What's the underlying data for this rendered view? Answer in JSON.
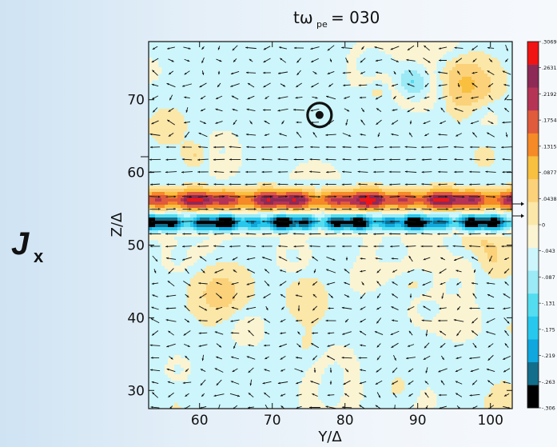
{
  "figure": {
    "quantity_label": "J",
    "quantity_subscript": "x",
    "title_main": "tω",
    "title_sub": "pe",
    "title_value": "= 030"
  },
  "chart_data": {
    "type": "heatmap",
    "plot": "filled contour of current density with overlaid vector arrows",
    "xlabel": "Y/Δ",
    "ylabel": "Z/Δ",
    "xlim": [
      53,
      103
    ],
    "ylim": [
      27.5,
      78
    ],
    "xticks": [
      60,
      70,
      80,
      90,
      100
    ],
    "yticks": [
      30,
      40,
      50,
      60,
      70
    ],
    "grid": false,
    "colorbar": {
      "placement": "right",
      "min": -0.3069,
      "max": 0.3069,
      "tick_labels": [
        ".3069",
        ".2631",
        ".2192",
        ".1754",
        ".1315",
        ".0877",
        ".0438",
        "0",
        "-.043",
        "-.087",
        "-.131",
        "-.175",
        "-.219",
        "-.263",
        "-.306"
      ],
      "colors": [
        "#000000",
        "#136e8c",
        "#0fa7de",
        "#27c8ee",
        "#54ddf0",
        "#9beaf6",
        "#ccf6fb",
        "#fbf4d2",
        "#fbe7a8",
        "#fbd27a",
        "#f9bf3f",
        "#f58a27",
        "#e05a3c",
        "#b53456",
        "#8e2a56",
        "#f01414"
      ]
    },
    "features": [
      {
        "name": "positive current sheet",
        "z_center": 56.2,
        "z_halfwidth": 1.3,
        "peak": 0.22
      },
      {
        "name": "negative current sheet",
        "z_center": 53.1,
        "z_halfwidth": 1.1,
        "peak": -0.26
      }
    ],
    "marker": {
      "symbol": "out-of-plane (circle with dot)",
      "y": 76.5,
      "z": 67.9
    }
  }
}
